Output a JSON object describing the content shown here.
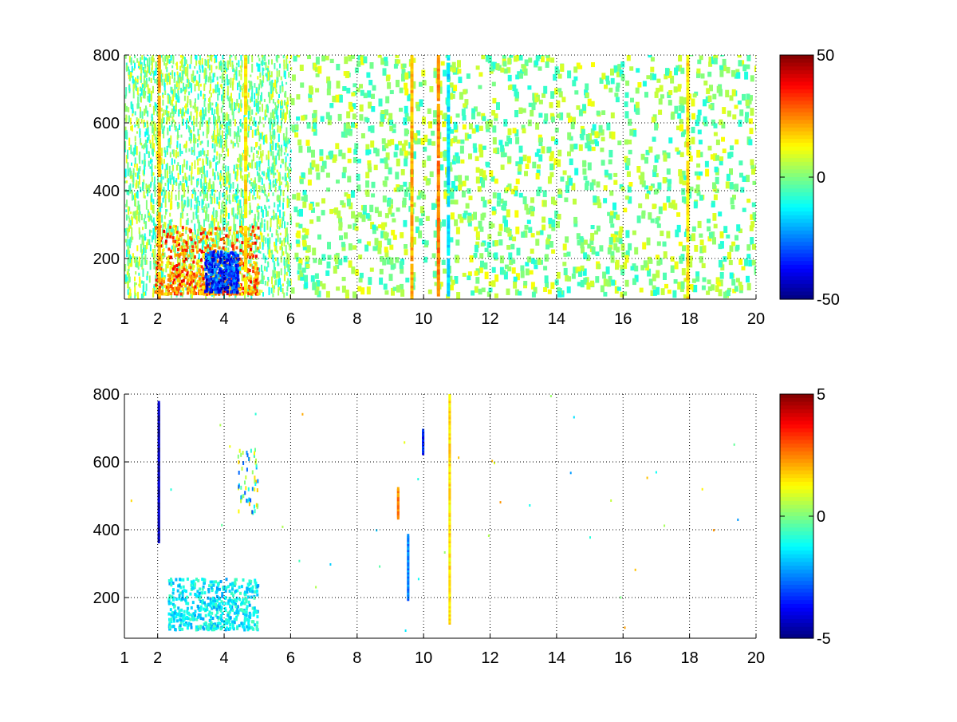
{
  "chart_data": [
    {
      "type": "heatmap",
      "title": "",
      "xlabel": "",
      "ylabel": "",
      "xlim": [
        1,
        20
      ],
      "ylim": [
        80,
        800
      ],
      "x_ticks": [
        "1",
        "2",
        "4",
        "6",
        "8",
        "10",
        "12",
        "14",
        "16",
        "18",
        "20"
      ],
      "x_tick_values": [
        1,
        2,
        4,
        6,
        8,
        10,
        12,
        14,
        16,
        18,
        20
      ],
      "y_ticks": [
        "200",
        "400",
        "600",
        "800"
      ],
      "y_tick_values": [
        200,
        400,
        600,
        800
      ],
      "grid": true,
      "colormap": "jet",
      "colorbar": {
        "range": [
          -50,
          50
        ],
        "ticks": [
          "50",
          "0",
          "-50"
        ],
        "tick_values": [
          50,
          0,
          -50
        ]
      },
      "regions": [
        {
          "x": [
            1.9,
            5.2
          ],
          "y": [
            90,
            300
          ],
          "value": 25,
          "note": "positive cluster"
        },
        {
          "x": [
            3.4,
            4.4
          ],
          "y": [
            90,
            220
          ],
          "value": -35,
          "note": "negative cluster"
        },
        {
          "x": [
            1.0,
            6.0
          ],
          "y": [
            80,
            800
          ],
          "value": 5,
          "note": "dense noise"
        },
        {
          "x": [
            6.0,
            20.0
          ],
          "y": [
            80,
            800
          ],
          "value": 0,
          "note": "sparse noise"
        }
      ],
      "vertical_streaks": [
        {
          "x": 2.0,
          "value": 20
        },
        {
          "x": 4.6,
          "value": 15
        },
        {
          "x": 9.6,
          "value": 20
        },
        {
          "x": 10.4,
          "value": 25
        },
        {
          "x": 10.7,
          "value": -15
        },
        {
          "x": 17.9,
          "value": 15
        }
      ]
    },
    {
      "type": "heatmap",
      "title": "",
      "xlabel": "",
      "ylabel": "",
      "xlim": [
        1,
        20
      ],
      "ylim": [
        80,
        800
      ],
      "x_ticks": [
        "1",
        "2",
        "4",
        "6",
        "8",
        "10",
        "12",
        "14",
        "16",
        "18",
        "20"
      ],
      "x_tick_values": [
        1,
        2,
        4,
        6,
        8,
        10,
        12,
        14,
        16,
        18,
        20
      ],
      "y_ticks": [
        "200",
        "400",
        "600",
        "800"
      ],
      "y_tick_values": [
        200,
        400,
        600,
        800
      ],
      "grid": true,
      "colormap": "jet",
      "colorbar": {
        "range": [
          -5,
          5
        ],
        "ticks": [
          "5",
          "0",
          "-5"
        ],
        "tick_values": [
          5,
          0,
          -5
        ]
      },
      "regions": [
        {
          "x": [
            2.3,
            5.0
          ],
          "y": [
            100,
            260
          ],
          "value": -1.5,
          "note": "cyan cluster"
        },
        {
          "x": [
            4.4,
            5.0
          ],
          "y": [
            460,
            620
          ],
          "value": -1.0,
          "note": "small cluster"
        }
      ],
      "vertical_streaks": [
        {
          "x": 2.0,
          "y": [
            360,
            770
          ],
          "value": -4.5
        },
        {
          "x": 9.2,
          "y": [
            430,
            520
          ],
          "value": 2.5
        },
        {
          "x": 9.5,
          "y": [
            190,
            380
          ],
          "value": -2.5
        },
        {
          "x": 9.95,
          "y": [
            620,
            690
          ],
          "value": -3.5
        },
        {
          "x": 10.75,
          "y": [
            120,
            800
          ],
          "value": 1.5
        }
      ]
    }
  ]
}
